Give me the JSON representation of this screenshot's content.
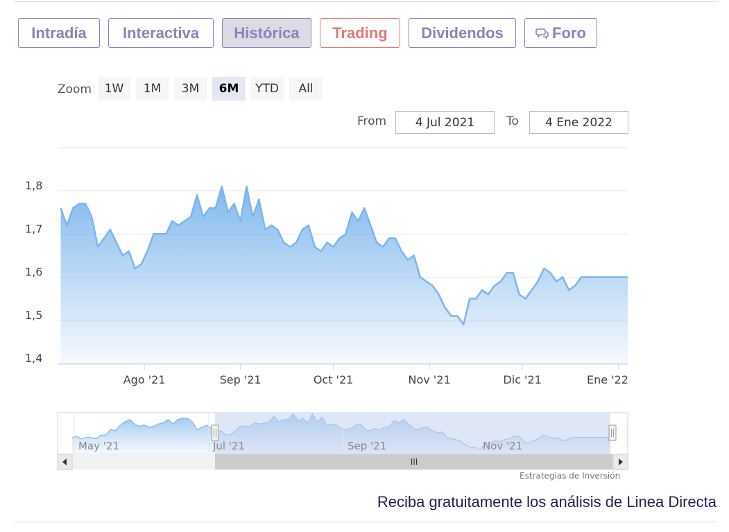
{
  "tabs": [
    {
      "label": "Intradía"
    },
    {
      "label": "Interactiva"
    },
    {
      "label": "Histórica"
    },
    {
      "label": "Trading"
    },
    {
      "label": "Dividendos"
    },
    {
      "label": "Foro",
      "icon": "chat-bubbles-icon"
    }
  ],
  "active_tab": "Histórica",
  "colors": {
    "tab": "#8a83bd",
    "trading": "#e07a72",
    "line": "#7cb5ec",
    "navigator_fill": "#c4d3ee"
  },
  "zoom": {
    "label": "Zoom",
    "buttons": [
      "1W",
      "1M",
      "3M",
      "6M",
      "YTD",
      "All"
    ],
    "selected": "6M"
  },
  "range": {
    "from_label": "From",
    "from_value": "4 Jul 2021",
    "to_label": "To",
    "to_value": "4 Ene 2022"
  },
  "navigator": {
    "labels": [
      "May '21",
      "Jul '21",
      "Sep '21",
      "Nov '21"
    ],
    "scroll_grip": "III"
  },
  "credits": "Estrategias de Inversión",
  "footer": "Reciba gratuitamente los análisis de Linea Directa",
  "chart_data": {
    "type": "area",
    "title": "",
    "xlabel": "",
    "ylabel": "",
    "ylim": [
      1.4,
      1.8
    ],
    "yticks": [
      "1,4",
      "1,5",
      "1,6",
      "1,7",
      "1,8"
    ],
    "x_ticks": [
      "Ago '21",
      "Sep '21",
      "Oct '21",
      "Nov '21",
      "Dic '21",
      "Ene '22"
    ],
    "x_range": [
      "2021-07-04",
      "2022-01-04"
    ],
    "grid": true,
    "series": [
      {
        "x": [
          "2021-07-05",
          "2021-07-07",
          "2021-07-09",
          "2021-07-11",
          "2021-07-13",
          "2021-07-15",
          "2021-07-17",
          "2021-07-19",
          "2021-07-21",
          "2021-07-23",
          "2021-07-25",
          "2021-07-27",
          "2021-07-29",
          "2021-07-31",
          "2021-08-02",
          "2021-08-04",
          "2021-08-06",
          "2021-08-08",
          "2021-08-10",
          "2021-08-12",
          "2021-08-14",
          "2021-08-16",
          "2021-08-18",
          "2021-08-20",
          "2021-08-22",
          "2021-08-24",
          "2021-08-26",
          "2021-08-28",
          "2021-08-30",
          "2021-09-01",
          "2021-09-03",
          "2021-09-05",
          "2021-09-07",
          "2021-09-09",
          "2021-09-11",
          "2021-09-13",
          "2021-09-15",
          "2021-09-17",
          "2021-09-19",
          "2021-09-21",
          "2021-09-23",
          "2021-09-25",
          "2021-09-27",
          "2021-09-29",
          "2021-10-01",
          "2021-10-03",
          "2021-10-05",
          "2021-10-07",
          "2021-10-09",
          "2021-10-11",
          "2021-10-13",
          "2021-10-15",
          "2021-10-17",
          "2021-10-19",
          "2021-10-21",
          "2021-10-23",
          "2021-10-25",
          "2021-10-27",
          "2021-10-29",
          "2021-10-31",
          "2021-11-02",
          "2021-11-04",
          "2021-11-06",
          "2021-11-08",
          "2021-11-10",
          "2021-11-12",
          "2021-11-14",
          "2021-11-16",
          "2021-11-18",
          "2021-11-20",
          "2021-11-22",
          "2021-11-24",
          "2021-11-26",
          "2021-11-28",
          "2021-11-30",
          "2021-12-02",
          "2021-12-04",
          "2021-12-06",
          "2021-12-08",
          "2021-12-10",
          "2021-12-12",
          "2021-12-14",
          "2021-12-16",
          "2021-12-18",
          "2021-12-20",
          "2021-12-22",
          "2021-12-24",
          "2021-12-26",
          "2021-12-28",
          "2021-12-30",
          "2022-01-01",
          "2022-01-03",
          "2022-01-04"
        ],
        "values": [
          1.76,
          1.72,
          1.76,
          1.77,
          1.77,
          1.74,
          1.67,
          1.69,
          1.71,
          1.68,
          1.65,
          1.66,
          1.62,
          1.63,
          1.66,
          1.7,
          1.7,
          1.7,
          1.73,
          1.72,
          1.73,
          1.74,
          1.79,
          1.74,
          1.76,
          1.76,
          1.81,
          1.75,
          1.77,
          1.73,
          1.81,
          1.74,
          1.78,
          1.71,
          1.72,
          1.71,
          1.68,
          1.67,
          1.68,
          1.71,
          1.72,
          1.67,
          1.66,
          1.68,
          1.67,
          1.69,
          1.7,
          1.75,
          1.73,
          1.76,
          1.72,
          1.68,
          1.67,
          1.69,
          1.69,
          1.66,
          1.64,
          1.65,
          1.6,
          1.59,
          1.58,
          1.56,
          1.53,
          1.51,
          1.51,
          1.49,
          1.55,
          1.55,
          1.57,
          1.56,
          1.58,
          1.59,
          1.61,
          1.61,
          1.56,
          1.55,
          1.57,
          1.59,
          1.62,
          1.61,
          1.59,
          1.6,
          1.57,
          1.58,
          1.6,
          1.6,
          1.6,
          1.6,
          1.6,
          1.6,
          1.6,
          1.6,
          1.6
        ]
      }
    ]
  }
}
